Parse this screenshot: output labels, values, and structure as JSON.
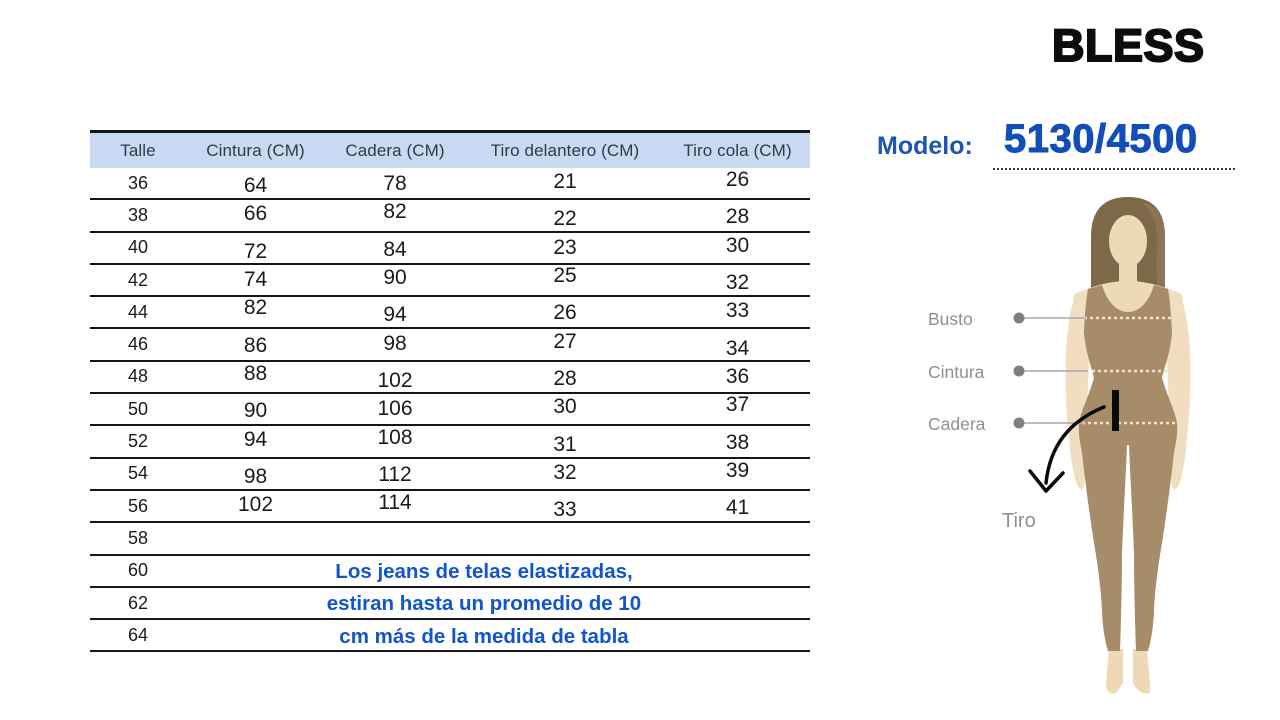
{
  "brand": {
    "logo": "BLESS"
  },
  "model": {
    "label": "Modelo:",
    "number": "5130/4500"
  },
  "table": {
    "headers": [
      "Talle",
      "Cintura (CM)",
      "Cadera (CM)",
      "Tiro delantero (CM)",
      "Tiro cola (CM)"
    ],
    "rows": [
      {
        "talle": "36",
        "values": [
          "64",
          "78",
          "21",
          "26"
        ]
      },
      {
        "talle": "38",
        "values": [
          "66",
          "82",
          "22",
          "28"
        ]
      },
      {
        "talle": "40",
        "values": [
          "72",
          "84",
          "23",
          "30"
        ]
      },
      {
        "talle": "42",
        "values": [
          "74",
          "90",
          "25",
          "32"
        ]
      },
      {
        "talle": "44",
        "values": [
          "82",
          "94",
          "26",
          "33"
        ]
      },
      {
        "talle": "46",
        "values": [
          "86",
          "98",
          "27",
          "34"
        ]
      },
      {
        "talle": "48",
        "values": [
          "88",
          "102",
          "28",
          "36"
        ]
      },
      {
        "talle": "50",
        "values": [
          "90",
          "106",
          "30",
          "37"
        ]
      },
      {
        "talle": "52",
        "values": [
          "94",
          "108",
          "31",
          "38"
        ]
      },
      {
        "talle": "54",
        "values": [
          "98",
          "112",
          "32",
          "39"
        ]
      },
      {
        "talle": "56",
        "values": [
          "102",
          "114",
          "33",
          "41"
        ]
      },
      {
        "talle": "58",
        "values": [
          "",
          "",
          "",
          ""
        ]
      },
      {
        "talle": "60",
        "values": [
          "",
          "",
          "",
          ""
        ]
      },
      {
        "talle": "62",
        "values": [
          "",
          "",
          "",
          ""
        ]
      },
      {
        "talle": "64",
        "values": [
          "",
          "",
          "",
          ""
        ]
      }
    ],
    "note_lines": [
      "Los jeans de telas elastizadas,",
      "estiran hasta un promedio de 10",
      "cm más de la medida de tabla"
    ]
  },
  "figure": {
    "labels": {
      "bust": "Busto",
      "waist": "Cintura",
      "hip": "Cadera",
      "rise": "Tiro"
    }
  },
  "colors": {
    "header_bg": "#c9d9f1",
    "header_text": "#2e3a4e",
    "note_blue": "#1155cc",
    "model_blue": "#134eb8",
    "table_line": "#161616",
    "figure_label_gray": "#8f8f8f",
    "skin": "#eed8b6",
    "skin_light": "#f1ddbf",
    "bodysuit": "#a78c69",
    "hair": "#7d6849"
  }
}
